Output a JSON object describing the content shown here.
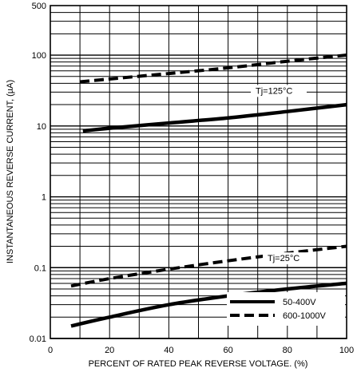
{
  "chart_data": {
    "type": "line",
    "title": "",
    "xlabel": "PERCENT OF RATED PEAK REVERSE VOLTAGE. (%)",
    "ylabel": "INSTANTANEOUS REVERSE CURRENT, (µA)",
    "xlim": [
      0,
      100
    ],
    "ylim": [
      0.01,
      500
    ],
    "y_scale": "log",
    "grid": true,
    "x_ticks": [
      "0",
      "20",
      "40",
      "60",
      "80",
      "100"
    ],
    "y_ticks": [
      "0.01",
      "0.1",
      "1",
      "10",
      "100",
      "500"
    ],
    "legend": {
      "placement": "bottom-right",
      "entries": [
        {
          "label": "50-400V",
          "style": "solid"
        },
        {
          "label": "600-1000V",
          "style": "dashed"
        }
      ]
    },
    "annotations": [
      "Tj=125°C",
      "Tj=25°C"
    ],
    "series": [
      {
        "label_ref": "50-400V",
        "group": "Tj=125°C",
        "style": "solid",
        "x": [
          11,
          20,
          40,
          60,
          80,
          100
        ],
        "y": [
          8.5,
          9.3,
          11,
          13,
          16,
          20
        ]
      },
      {
        "label_ref": "600-1000V",
        "group": "Tj=125°C",
        "style": "dashed",
        "x": [
          10,
          20,
          40,
          60,
          80,
          100
        ],
        "y": [
          42,
          46,
          55,
          66,
          82,
          100
        ]
      },
      {
        "label_ref": "50-400V",
        "group": "Tj=25°C",
        "style": "solid",
        "x": [
          7,
          20,
          40,
          60,
          80,
          100
        ],
        "y": [
          0.015,
          0.02,
          0.03,
          0.04,
          0.05,
          0.06
        ]
      },
      {
        "label_ref": "600-1000V",
        "group": "Tj=25°C",
        "style": "dashed",
        "x": [
          7,
          20,
          40,
          60,
          80,
          100
        ],
        "y": [
          0.055,
          0.07,
          0.095,
          0.125,
          0.16,
          0.2
        ]
      }
    ]
  }
}
